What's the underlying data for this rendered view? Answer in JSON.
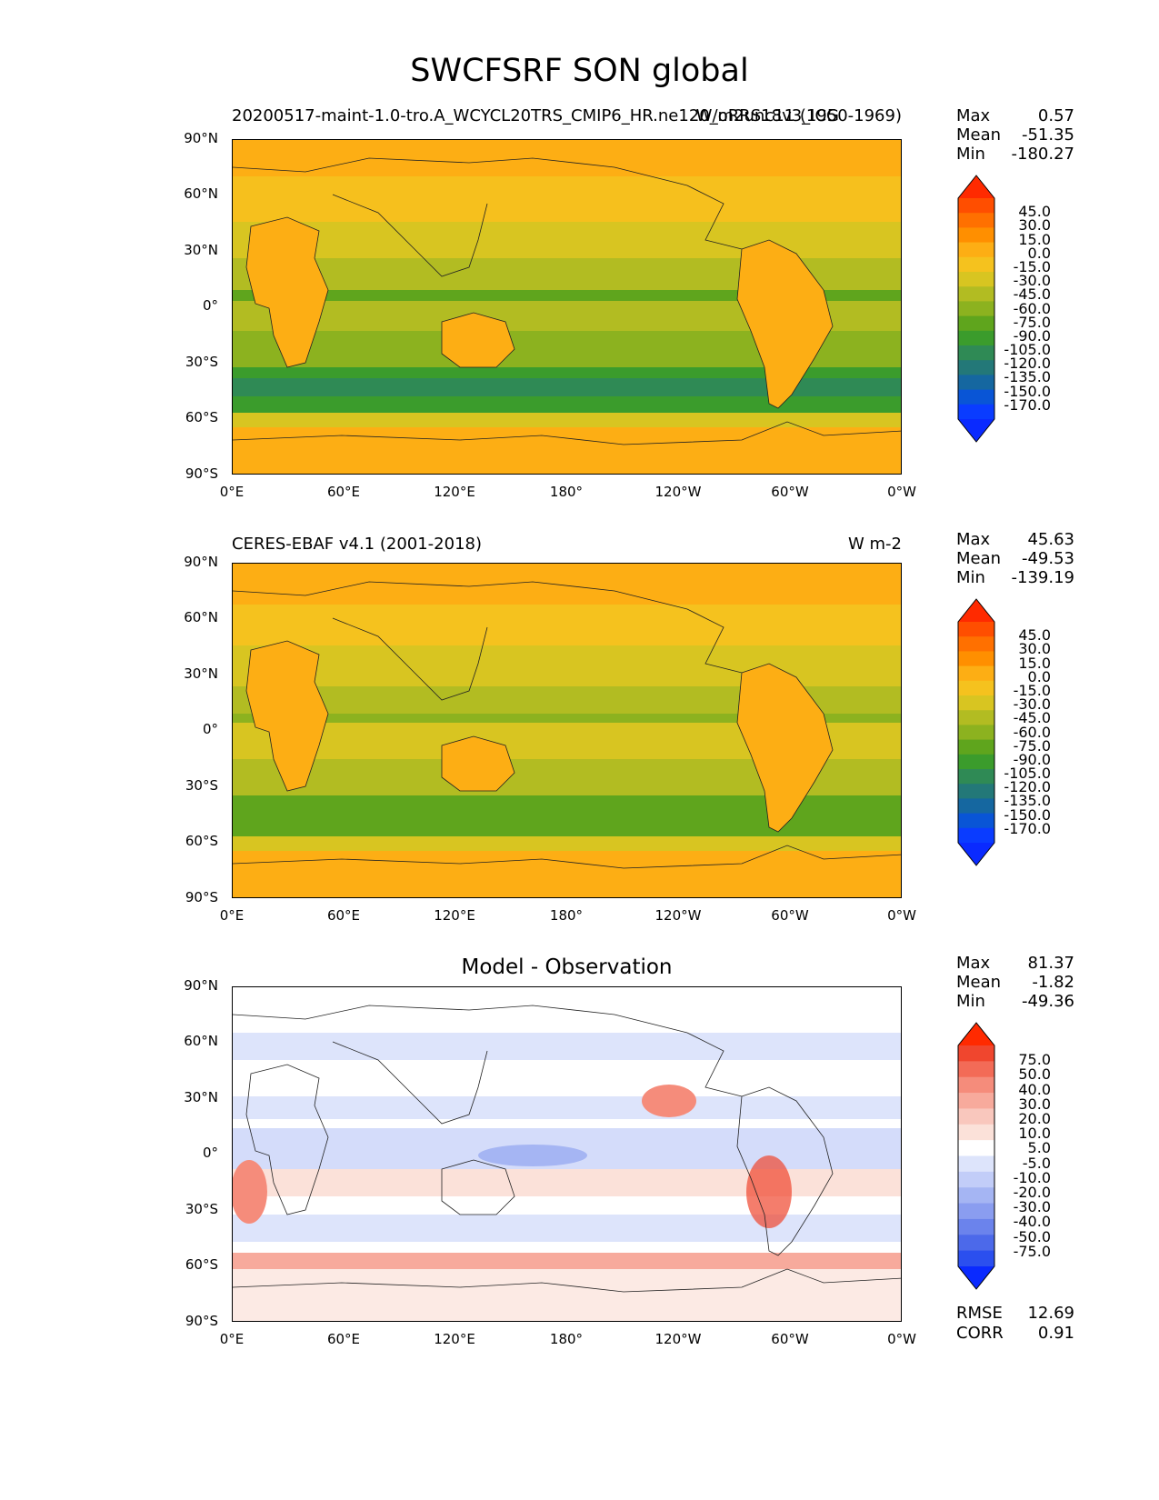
{
  "title": "SWCFSRF SON global",
  "lat_labels": [
    "90°N",
    "60°N",
    "30°N",
    "0°",
    "30°S",
    "60°S",
    "90°S"
  ],
  "lon_labels": [
    "0°E",
    "60°E",
    "120°E",
    "180°",
    "120°W",
    "60°W",
    "0°W"
  ],
  "panels": [
    {
      "subtitle_left": "20200517-maint-1.0-tro.A_WCYCL20TRS_CMIP6_HR.ne120_oRRS18v3_ICG",
      "subtitle_right": "W/m2unc11 (1950-1969)",
      "stats": {
        "max_label": "Max",
        "max": "0.57",
        "mean_label": "Mean",
        "mean": "-51.35",
        "min_label": "Min",
        "min": "-180.27"
      },
      "colorbar_labels": [
        "45.0",
        "30.0",
        "15.0",
        "0.0",
        "-15.0",
        "-30.0",
        "-45.0",
        "-60.0",
        "-75.0",
        "-90.0",
        "-105.0",
        "-120.0",
        "-135.0",
        "-150.0",
        "-170.0"
      ],
      "colorbar_colors": [
        "#ff2a00",
        "#ff4e00",
        "#ff7000",
        "#ff8f00",
        "#fdae14",
        "#f5c21e",
        "#d8c521",
        "#b2bc22",
        "#8cb21f",
        "#5fa51d",
        "#3b9c2c",
        "#2f8a55",
        "#237878",
        "#1567a0",
        "#0955d6",
        "#0a3cff",
        "#0a2aff"
      ]
    },
    {
      "subtitle_left": "CERES-EBAF v4.1 (2001-2018)",
      "subtitle_right": "W m-2",
      "stats": {
        "max_label": "Max",
        "max": "45.63",
        "mean_label": "Mean",
        "mean": "-49.53",
        "min_label": "Min",
        "min": "-139.19"
      },
      "colorbar_labels": [
        "45.0",
        "30.0",
        "15.0",
        "0.0",
        "-15.0",
        "-30.0",
        "-45.0",
        "-60.0",
        "-75.0",
        "-90.0",
        "-105.0",
        "-120.0",
        "-135.0",
        "-150.0",
        "-170.0"
      ],
      "colorbar_colors": [
        "#ff2a00",
        "#ff4e00",
        "#ff7000",
        "#ff8f00",
        "#fdae14",
        "#f5c21e",
        "#d8c521",
        "#b2bc22",
        "#8cb21f",
        "#5fa51d",
        "#3b9c2c",
        "#2f8a55",
        "#237878",
        "#1567a0",
        "#0955d6",
        "#0a3cff",
        "#0a2aff"
      ]
    },
    {
      "subtitle_center": "Model - Observation",
      "stats": {
        "max_label": "Max",
        "max": "81.37",
        "mean_label": "Mean",
        "mean": "-1.82",
        "min_label": "Min",
        "min": "-49.36"
      },
      "colorbar_labels": [
        "75.0",
        "50.0",
        "40.0",
        "30.0",
        "20.0",
        "10.0",
        "5.0",
        "-5.0",
        "-10.0",
        "-20.0",
        "-30.0",
        "-40.0",
        "-50.0",
        "-75.0"
      ],
      "colorbar_colors": [
        "#ff2a00",
        "#f0462e",
        "#f36b57",
        "#f58c7b",
        "#f7aa9c",
        "#f9c7bd",
        "#fbe1d9",
        "#ffffff",
        "#dde4fb",
        "#c2cdf8",
        "#a5b5f3",
        "#8a9df0",
        "#6b83ec",
        "#4c69ea",
        "#2b4fef",
        "#0a2aff"
      ],
      "rmse_label": "RMSE",
      "rmse": "12.69",
      "corr_label": "CORR",
      "corr": "0.91"
    }
  ]
}
